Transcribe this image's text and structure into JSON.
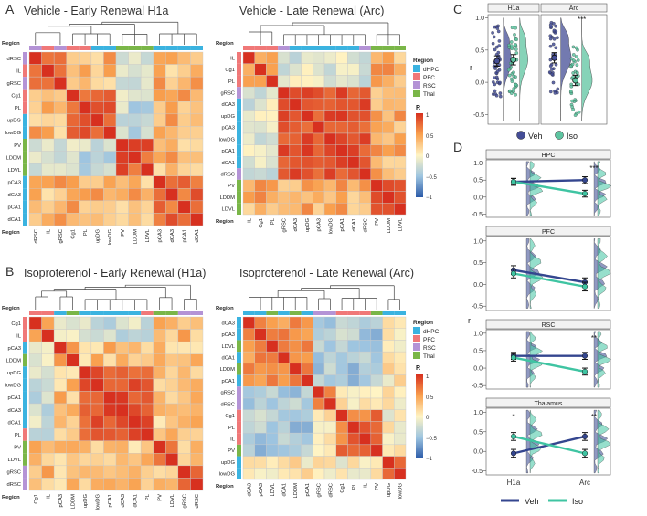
{
  "figure": {
    "panel_letters": [
      "A",
      "B",
      "C",
      "D"
    ],
    "legend_region_title": "Region",
    "legend_r_title": "R",
    "region_colors": {
      "dHPC": "#3bb3e0",
      "PFC": "#f07878",
      "RSC": "#b493d6",
      "Thal": "#7ab648"
    },
    "heat_colors": {
      "neg": "#2b5aa8",
      "mid": "#fff4c4",
      "pos": "#d7301f"
    }
  },
  "chart_data": [
    {
      "type": "heatmap",
      "id": "A1",
      "title": "Vehicle - Early Renewal  H1a",
      "axis_title": "Region",
      "labels": [
        "dRSC",
        "IL",
        "gRSC",
        "Cg1",
        "PL",
        "upDG",
        "lowDG",
        "PV",
        "LDDM",
        "LDVL",
        "pCA3",
        "dCA3",
        "pCA1",
        "dCA1"
      ],
      "groups": [
        "RSC",
        "PFC",
        "RSC",
        "PFC",
        "PFC",
        "dHPC",
        "dHPC",
        "Thal",
        "Thal",
        "Thal",
        "dHPC",
        "dHPC",
        "dHPC",
        "dHPC"
      ],
      "blocks": [
        [
          0,
          3,
          0.6
        ],
        [
          3,
          7,
          0.75
        ],
        [
          7,
          10,
          0.8
        ],
        [
          10,
          14,
          0.75
        ]
      ],
      "base": 0.35,
      "cool": [
        [
          7,
          10,
          0,
          7,
          -0.3
        ]
      ]
    },
    {
      "type": "heatmap",
      "id": "A2",
      "title": "Vehicle - Late Renewal (Arc)",
      "axis_title": "Region",
      "labels": [
        "IL",
        "Cg1",
        "PL",
        "gRSC",
        "dCA3",
        "upDG",
        "pCA3",
        "lowDG",
        "pCA1",
        "dCA1",
        "dRSC",
        "PV",
        "LDDM",
        "LDVL"
      ],
      "groups": [
        "PFC",
        "PFC",
        "PFC",
        "RSC",
        "dHPC",
        "dHPC",
        "dHPC",
        "dHPC",
        "dHPC",
        "dHPC",
        "RSC",
        "Thal",
        "Thal",
        "Thal"
      ],
      "blocks": [
        [
          0,
          3,
          0.5
        ],
        [
          3,
          11,
          0.85
        ],
        [
          11,
          14,
          0.85
        ]
      ],
      "base": 0.4,
      "cool": [
        [
          0,
          3,
          3,
          11,
          -0.2
        ]
      ]
    },
    {
      "type": "heatmap",
      "id": "B1",
      "title": "Isoproterenol - Early Renewal (H1a)",
      "axis_title": "Region",
      "labels": [
        "Cg1",
        "IL",
        "pCA3",
        "LDDM",
        "upDG",
        "lowDG",
        "pCA1",
        "dCA3",
        "dCA1",
        "PL",
        "PV",
        "LDVL",
        "gRSC",
        "dRSC"
      ],
      "groups": [
        "PFC",
        "PFC",
        "dHPC",
        "Thal",
        "dHPC",
        "dHPC",
        "dHPC",
        "dHPC",
        "dHPC",
        "PFC",
        "Thal",
        "Thal",
        "RSC",
        "RSC"
      ],
      "blocks": [
        [
          0,
          2,
          0.5
        ],
        [
          2,
          4,
          0.5
        ],
        [
          4,
          10,
          0.85
        ],
        [
          10,
          12,
          0.6
        ],
        [
          12,
          14,
          0.8
        ]
      ],
      "base": 0.3,
      "cool": [
        [
          0,
          2,
          2,
          10,
          -0.25
        ]
      ]
    },
    {
      "type": "heatmap",
      "id": "B2",
      "title": "Isoproterenol - Late Renewal (Arc)",
      "axis_title": "Region",
      "labels": [
        "dCA3",
        "pCA3",
        "LDVL",
        "dCA1",
        "LDDM",
        "pCA1",
        "gRSC",
        "dRSC",
        "Cg1",
        "PL",
        "IL",
        "PV",
        "upDG",
        "lowDG"
      ],
      "groups": [
        "dHPC",
        "dHPC",
        "Thal",
        "dHPC",
        "Thal",
        "dHPC",
        "RSC",
        "RSC",
        "PFC",
        "PFC",
        "PFC",
        "Thal",
        "dHPC",
        "dHPC"
      ],
      "blocks": [
        [
          0,
          6,
          0.55
        ],
        [
          6,
          8,
          0.75
        ],
        [
          8,
          12,
          0.7
        ],
        [
          12,
          14,
          0.85
        ]
      ],
      "base": 0.05,
      "cool": [
        [
          0,
          6,
          6,
          12,
          -0.45
        ]
      ]
    },
    {
      "type": "violin",
      "id": "C",
      "facets": [
        "H1a",
        "Arc"
      ],
      "ylabel": "r",
      "yticks": [
        -0.5,
        0.0,
        0.5,
        1.0
      ],
      "ylim": [
        -0.65,
        1.05
      ],
      "means": {
        "H1a": {
          "Veh": 0.33,
          "Iso": 0.35
        },
        "Arc": {
          "Veh": 0.38,
          "Iso": 0.03
        }
      },
      "significance": {
        "Arc": "***"
      },
      "legend": [
        "Veh",
        "Iso"
      ],
      "colors": {
        "Veh": "#444d96",
        "Iso": "#5dc4a0"
      }
    },
    {
      "type": "line",
      "id": "D",
      "x": [
        "H1a",
        "Arc"
      ],
      "ylabel": "r",
      "legend": [
        "Veh",
        "Iso"
      ],
      "colors": {
        "Veh": "#34468f",
        "Iso": "#3fc4a2"
      },
      "panels": [
        {
          "title": "HPC",
          "yticks": [
            -0.5,
            0.0,
            0.5,
            1.0
          ],
          "ylim": [
            -0.6,
            1.1
          ],
          "series": [
            {
              "name": "Veh",
              "values": [
                0.45,
                0.5
              ]
            },
            {
              "name": "Iso",
              "values": [
                0.45,
                0.1
              ]
            }
          ],
          "sig": [
            "",
            "***"
          ]
        },
        {
          "title": "PFC",
          "yticks": [
            -0.5,
            0.0,
            0.5,
            1.0
          ],
          "ylim": [
            -0.6,
            1.1
          ],
          "series": [
            {
              "name": "Veh",
              "values": [
                0.33,
                0.05
              ]
            },
            {
              "name": "Iso",
              "values": [
                0.25,
                -0.05
              ]
            }
          ],
          "sig": [
            "",
            ""
          ]
        },
        {
          "title": "RSC",
          "yticks": [
            -0.5,
            0.0,
            0.5,
            1.0
          ],
          "ylim": [
            -0.6,
            1.1
          ],
          "series": [
            {
              "name": "Veh",
              "values": [
                0.35,
                0.35
              ]
            },
            {
              "name": "Iso",
              "values": [
                0.3,
                -0.1
              ]
            }
          ],
          "sig": [
            "",
            "**"
          ]
        },
        {
          "title": "Thalamus",
          "yticks": [
            -0.5,
            0.0,
            0.5,
            1.0
          ],
          "ylim": [
            -0.6,
            1.1
          ],
          "series": [
            {
              "name": "Veh",
              "values": [
                -0.05,
                0.38
              ]
            },
            {
              "name": "Iso",
              "values": [
                0.38,
                -0.05
              ]
            }
          ],
          "sig": [
            "*",
            "**"
          ]
        }
      ]
    }
  ]
}
